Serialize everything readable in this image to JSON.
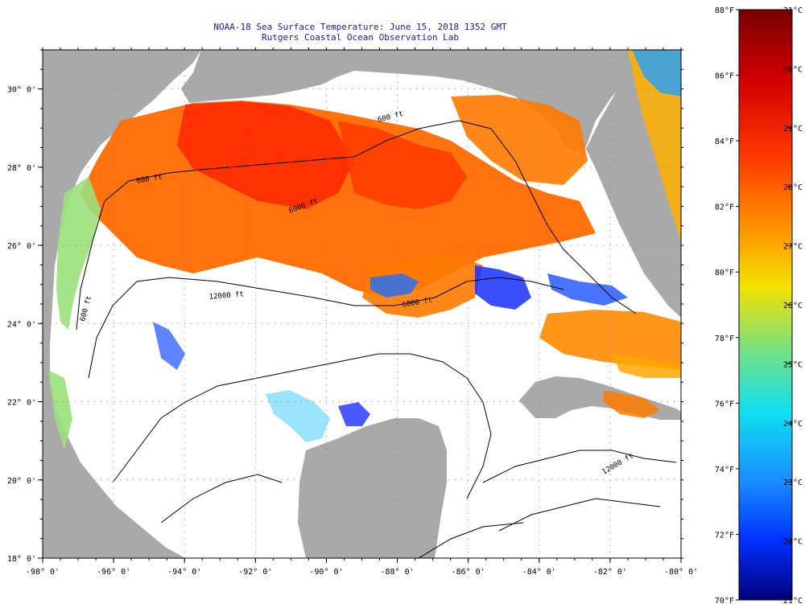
{
  "title": "NOAA-18 Sea Surface Temperature:  June 15, 2018 1352 GMT",
  "subtitle": "Rutgers Coastal Ocean Observation Lab",
  "map": {
    "lon_range": [
      -98,
      -80
    ],
    "lat_range": [
      18,
      31
    ],
    "lon_ticks": [
      "-98° 0'",
      "-96° 0'",
      "-94° 0'",
      "-92° 0'",
      "-90° 0'",
      "-88° 0'",
      "-86° 0'",
      "-84° 0'",
      "-82° 0'",
      "-80° 0'"
    ],
    "lat_ticks": [
      "30° 0'",
      "28° 0'",
      "26° 0'",
      "24° 0'",
      "22° 0'",
      "20° 0'",
      "18° 0'"
    ],
    "contour_labels": [
      "600 ft",
      "600 ft",
      "6000 ft",
      "12000 ft",
      "6000 ft",
      "600 ft",
      "12000 ft"
    ],
    "land_color": "#a9a9a9",
    "nodata_color": "#ffffff",
    "grid": "dotted"
  },
  "colorbar": {
    "f_labels": [
      "88°F",
      "86°F",
      "84°F",
      "82°F",
      "80°F",
      "78°F",
      "76°F",
      "74°F",
      "72°F",
      "70°F"
    ],
    "c_labels": [
      "31°C",
      "30°C",
      "29°C",
      "28°C",
      "27°C",
      "26°C",
      "25°C",
      "24°C",
      "23°C",
      "22°C",
      "21°C"
    ],
    "range_c": [
      21,
      31
    ],
    "range_f": [
      70,
      88
    ]
  }
}
